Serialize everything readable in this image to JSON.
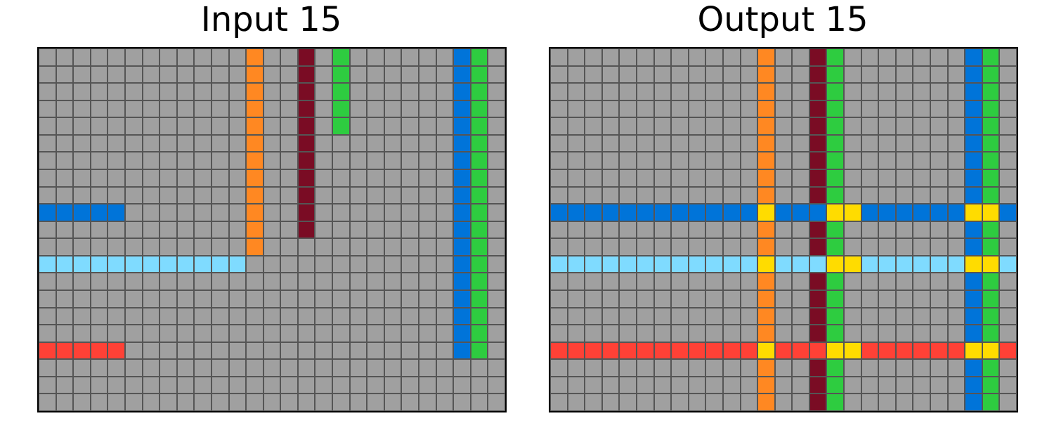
{
  "titles": {
    "input": "Input 15",
    "output": "Output 15"
  },
  "palette": {
    "0": "#a0a0a0",
    "1": "#ff8822",
    "2": "#7a0c24",
    "3": "#2ecc40",
    "4": "#0074d9",
    "5": "#7fdbff",
    "6": "#ff4136",
    "7": "#ffdc00"
  },
  "color_names": {
    "0": "gray",
    "1": "orange",
    "2": "maroon",
    "3": "green",
    "4": "blue",
    "5": "light-blue",
    "6": "red",
    "7": "yellow"
  },
  "grid_size": {
    "rows": 21,
    "cols": 27
  },
  "input_grid": [
    "000000000000100203000000430",
    "000000000000100203000000430",
    "000000000000100203000000430",
    "000000000000100203000000430",
    "000000000000100203000000430",
    "000000000000100200000000430",
    "000000000000100200000000430",
    "000000000000100200000000430",
    "000000000000100200000000430",
    "444440000000100200000000430",
    "000000000000100200000000430",
    "000000000000100000000000430",
    "555555555555000000000000430",
    "000000000000000000000000430",
    "000000000000000000000000430",
    "000000000000000000000000430",
    "000000000000000000000000430",
    "666660000000000000000000430",
    "000000000000000000000000000",
    "000000000000000000000000000",
    "000000000000000000000000000"
  ],
  "output_grid": [
    "000000000000100230000000430",
    "000000000000100230000000430",
    "000000000000100230000000430",
    "000000000000100230000000430",
    "000000000000100230000000430",
    "000000000000100230000000430",
    "000000000000100230000000430",
    "000000000000100230000000430",
    "000000000000100230000000430",
    "444444444444744477444444774",
    "000000000000100230000000430",
    "000000000000100230000000430",
    "555555555555755577555555775",
    "000000000000100230000000430",
    "000000000000100230000000430",
    "000000000000100230000000430",
    "000000000000100230000000430",
    "666666666666766677666666776",
    "000000000000100230000000430",
    "000000000000100230000000430",
    "000000000000100230000000430"
  ]
}
